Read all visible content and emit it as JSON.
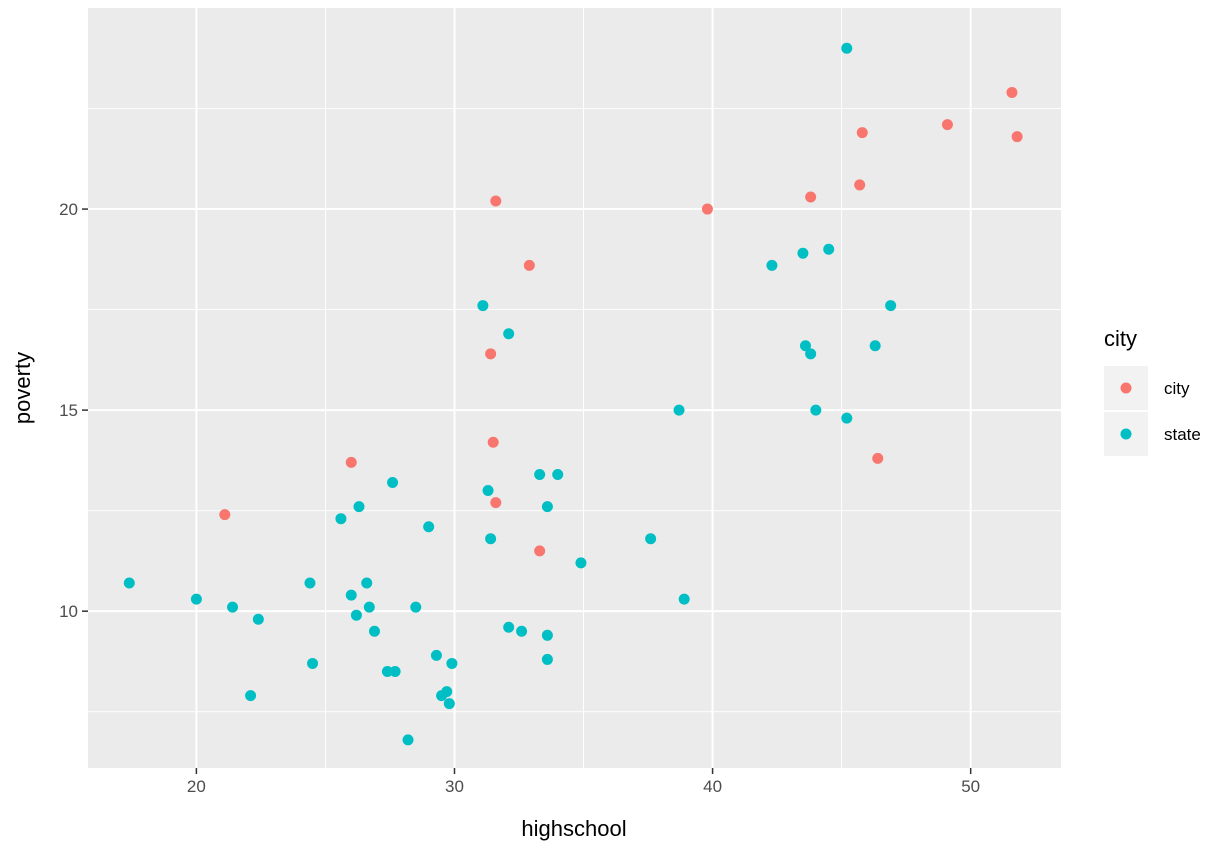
{
  "chart_data": {
    "type": "scatter",
    "xlabel": "highschool",
    "ylabel": "poverty",
    "xlim": [
      15.8,
      53.5
    ],
    "ylim": [
      6.1,
      25.0
    ],
    "x_ticks": [
      20,
      30,
      40,
      50
    ],
    "y_ticks": [
      10,
      15,
      20
    ],
    "x_minor_ticks": [
      25,
      35,
      45
    ],
    "y_minor_ticks": [
      7.5,
      12.5,
      17.5,
      22.5
    ],
    "grid": true,
    "legend": {
      "title": "city",
      "placement": "right",
      "entries": [
        "city",
        "state"
      ]
    },
    "colors": {
      "city": "#F8766D",
      "state": "#00BFC4",
      "panel": "#EBEBEB",
      "grid": "#FFFFFF"
    },
    "series": [
      {
        "name": "city",
        "points": [
          [
            21.1,
            12.4
          ],
          [
            26.0,
            13.7
          ],
          [
            31.4,
            16.4
          ],
          [
            31.5,
            14.2
          ],
          [
            31.6,
            20.2
          ],
          [
            31.6,
            12.7
          ],
          [
            32.9,
            18.6
          ],
          [
            33.3,
            11.5
          ],
          [
            39.8,
            20.0
          ],
          [
            43.8,
            20.3
          ],
          [
            45.7,
            20.6
          ],
          [
            45.8,
            21.9
          ],
          [
            46.4,
            13.8
          ],
          [
            49.1,
            22.1
          ],
          [
            51.6,
            22.9
          ],
          [
            51.8,
            21.8
          ]
        ]
      },
      {
        "name": "state",
        "points": [
          [
            17.4,
            10.7
          ],
          [
            20.0,
            10.3
          ],
          [
            21.4,
            10.1
          ],
          [
            22.1,
            7.9
          ],
          [
            22.4,
            9.8
          ],
          [
            24.4,
            10.7
          ],
          [
            24.5,
            8.7
          ],
          [
            25.6,
            12.3
          ],
          [
            26.0,
            10.4
          ],
          [
            26.2,
            9.9
          ],
          [
            26.3,
            12.6
          ],
          [
            26.6,
            10.7
          ],
          [
            26.7,
            10.1
          ],
          [
            26.9,
            9.5
          ],
          [
            27.4,
            8.5
          ],
          [
            27.6,
            13.2
          ],
          [
            27.7,
            8.5
          ],
          [
            28.2,
            6.8
          ],
          [
            28.5,
            10.1
          ],
          [
            29.0,
            12.1
          ],
          [
            29.3,
            8.9
          ],
          [
            29.5,
            7.9
          ],
          [
            29.7,
            8.0
          ],
          [
            29.8,
            7.7
          ],
          [
            29.9,
            8.7
          ],
          [
            31.1,
            17.6
          ],
          [
            31.3,
            13.0
          ],
          [
            31.4,
            11.8
          ],
          [
            32.1,
            16.9
          ],
          [
            32.1,
            9.6
          ],
          [
            32.6,
            9.5
          ],
          [
            33.3,
            13.4
          ],
          [
            33.6,
            12.6
          ],
          [
            33.6,
            9.4
          ],
          [
            33.6,
            8.8
          ],
          [
            34.0,
            13.4
          ],
          [
            34.9,
            11.2
          ],
          [
            37.6,
            11.8
          ],
          [
            38.7,
            15.0
          ],
          [
            38.9,
            10.3
          ],
          [
            42.3,
            18.6
          ],
          [
            43.5,
            18.9
          ],
          [
            43.6,
            16.6
          ],
          [
            43.8,
            16.4
          ],
          [
            44.0,
            15.0
          ],
          [
            44.5,
            19.0
          ],
          [
            45.2,
            24.0
          ],
          [
            45.2,
            14.8
          ],
          [
            46.3,
            16.6
          ],
          [
            46.9,
            17.6
          ]
        ]
      }
    ]
  }
}
